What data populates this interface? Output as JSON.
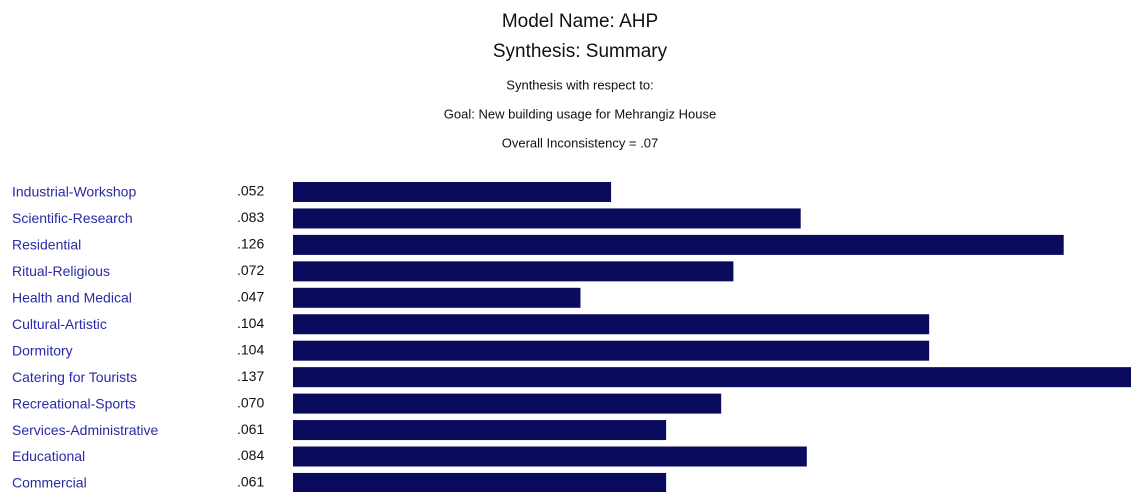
{
  "chart_data": {
    "type": "bar",
    "orientation": "horizontal",
    "title": "Model Name: AHP",
    "subtitle": "Synthesis: Summary",
    "annotations": [
      "Synthesis with respect to:",
      "Goal: New building usage for Mehrangiz House",
      "Overall Inconsistency = .07"
    ],
    "categories": [
      "Industrial-Workshop",
      "Scientific-Research",
      "Residential",
      "Ritual-Religious",
      "Health and Medical",
      "Cultural-Artistic",
      "Dormitory",
      "Catering for Tourists",
      "Recreational-Sports",
      "Services-Administrative",
      "Educational",
      "Commercial"
    ],
    "values": [
      0.052,
      0.083,
      0.126,
      0.072,
      0.047,
      0.104,
      0.104,
      0.137,
      0.07,
      0.061,
      0.084,
      0.061
    ],
    "value_labels": [
      ".052",
      ".083",
      ".126",
      ".072",
      ".047",
      ".104",
      ".104",
      ".137",
      ".070",
      ".061",
      ".084",
      ".061"
    ],
    "color": "#0b0b5e"
  }
}
